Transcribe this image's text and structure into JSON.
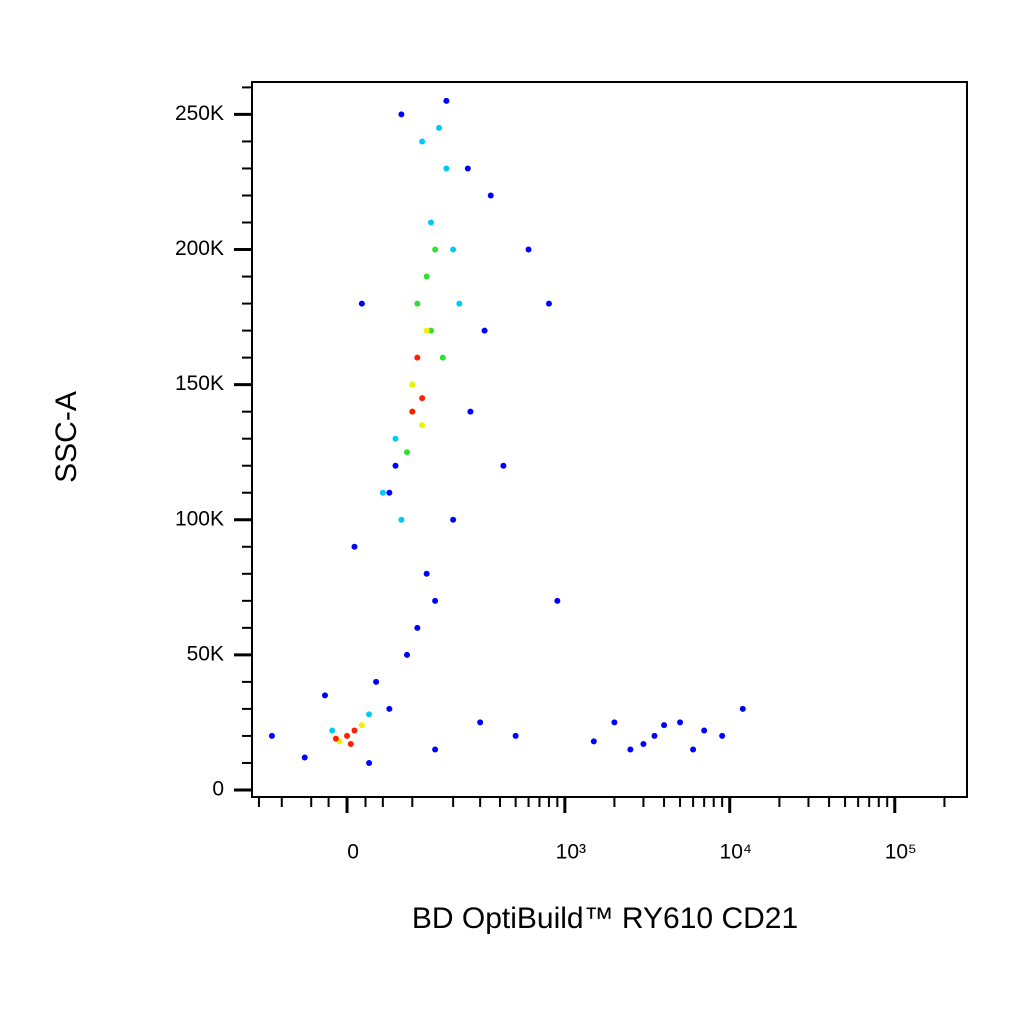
{
  "chart_data": {
    "type": "scatter",
    "x_label": "BD OptiBuild™ RY610 CD21",
    "y_label": "SSC-A",
    "xscale": "biexponential",
    "xlim": [
      -168,
      274000
    ],
    "ylim": [
      -2600,
      262000
    ],
    "xticks": [
      0,
      {
        "value": 1000,
        "label": "10³"
      },
      {
        "value": 10000,
        "label": "10⁴"
      },
      {
        "value": 100000,
        "label": "10⁵"
      }
    ],
    "xminorticks": [
      -150,
      -100,
      -50,
      -25,
      25,
      50,
      100,
      200,
      300,
      400,
      500,
      600,
      700,
      800,
      900,
      2000,
      3000,
      4000,
      5000,
      6000,
      7000,
      8000,
      9000,
      20000,
      30000,
      40000,
      50000,
      60000,
      70000,
      80000,
      90000,
      200000
    ],
    "yticks": [
      0,
      {
        "value": 50000,
        "label": "50K"
      },
      {
        "value": 100000,
        "label": "100K"
      },
      {
        "value": 150000,
        "label": "150K"
      },
      {
        "value": 200000,
        "label": "200K"
      },
      {
        "value": 250000,
        "label": "250K"
      }
    ],
    "yminorticks": [
      10000,
      20000,
      30000,
      40000,
      60000,
      70000,
      80000,
      90000,
      110000,
      120000,
      130000,
      140000,
      160000,
      170000,
      180000,
      190000,
      210000,
      220000,
      230000,
      240000,
      260000
    ],
    "series": [
      {
        "color": "#0000ff",
        "x": [
          -120,
          -60,
          30,
          60,
          150,
          300,
          500,
          250,
          80,
          20,
          180,
          350,
          600,
          1500,
          2500,
          3500,
          5000,
          7000,
          9000,
          6000,
          4000,
          3000,
          12000,
          200,
          130,
          110,
          90,
          40,
          -30,
          10,
          70,
          260,
          320,
          420,
          150,
          60,
          800,
          900,
          2000
        ],
        "y": [
          20000,
          12000,
          10000,
          30000,
          15000,
          25000,
          20000,
          230000,
          250000,
          180000,
          255000,
          220000,
          200000,
          18000,
          15000,
          20000,
          25000,
          22000,
          20000,
          15000,
          24000,
          17000,
          30000,
          100000,
          80000,
          60000,
          50000,
          40000,
          35000,
          90000,
          120000,
          140000,
          170000,
          120000,
          70000,
          110000,
          180000,
          70000,
          25000
        ]
      },
      {
        "color": "#00c8ff",
        "x": [
          50,
          80,
          120,
          160,
          200,
          220,
          180,
          140,
          100,
          70,
          -20,
          30
        ],
        "y": [
          110000,
          100000,
          240000,
          245000,
          200000,
          180000,
          230000,
          210000,
          150000,
          130000,
          22000,
          28000
        ]
      },
      {
        "color": "#30e030",
        "x": [
          90,
          110,
          150,
          170,
          130,
          100,
          140
        ],
        "y": [
          125000,
          180000,
          200000,
          160000,
          190000,
          140000,
          170000
        ]
      },
      {
        "color": "#f0f000",
        "x": [
          100,
          130,
          120,
          20,
          -10
        ],
        "y": [
          150000,
          170000,
          135000,
          24000,
          18000
        ]
      },
      {
        "color": "#ff2000",
        "x": [
          110,
          120,
          100,
          0,
          10,
          -15,
          5
        ],
        "y": [
          160000,
          145000,
          140000,
          20000,
          22000,
          19000,
          17000
        ]
      }
    ]
  }
}
